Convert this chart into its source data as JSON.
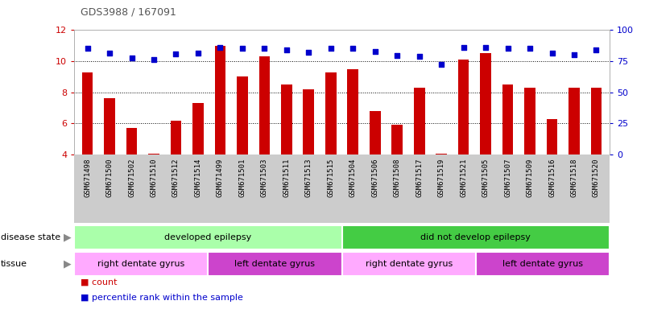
{
  "title": "GDS3988 / 167091",
  "samples": [
    "GSM671498",
    "GSM671500",
    "GSM671502",
    "GSM671510",
    "GSM671512",
    "GSM671514",
    "GSM671499",
    "GSM671501",
    "GSM671503",
    "GSM671511",
    "GSM671513",
    "GSM671515",
    "GSM671504",
    "GSM671506",
    "GSM671508",
    "GSM671517",
    "GSM671519",
    "GSM671521",
    "GSM671505",
    "GSM671507",
    "GSM671509",
    "GSM671516",
    "GSM671518",
    "GSM671520"
  ],
  "count_values": [
    9.3,
    7.6,
    5.7,
    4.05,
    6.2,
    7.3,
    11.0,
    9.0,
    10.3,
    8.5,
    8.2,
    9.3,
    9.5,
    6.8,
    5.9,
    8.3,
    4.05,
    10.1,
    10.5,
    8.5,
    8.3,
    6.3,
    8.3,
    8.3
  ],
  "percentile_values": [
    10.8,
    10.5,
    10.2,
    10.1,
    10.45,
    10.5,
    10.9,
    10.8,
    10.8,
    10.7,
    10.55,
    10.8,
    10.85,
    10.6,
    10.35,
    10.3,
    9.8,
    10.9,
    10.9,
    10.85,
    10.8,
    10.5,
    10.4,
    10.7
  ],
  "ylim_left": [
    4,
    12
  ],
  "ylim_right": [
    0,
    100
  ],
  "yticks_left": [
    4,
    6,
    8,
    10,
    12
  ],
  "yticks_right": [
    0,
    25,
    50,
    75,
    100
  ],
  "bar_color": "#cc0000",
  "dot_color": "#0000cc",
  "disease_state": [
    {
      "label": "developed epilepsy",
      "start": 0,
      "end": 12,
      "color": "#aaffaa"
    },
    {
      "label": "did not develop epilepsy",
      "start": 12,
      "end": 24,
      "color": "#44cc44"
    }
  ],
  "tissue": [
    {
      "label": "right dentate gyrus",
      "start": 0,
      "end": 6,
      "color": "#ffaaff"
    },
    {
      "label": "left dentate gyrus",
      "start": 6,
      "end": 12,
      "color": "#cc44cc"
    },
    {
      "label": "right dentate gyrus",
      "start": 12,
      "end": 18,
      "color": "#ffaaff"
    },
    {
      "label": "left dentate gyrus",
      "start": 18,
      "end": 24,
      "color": "#cc44cc"
    }
  ],
  "annotation_row1_label": "disease state",
  "annotation_row2_label": "tissue",
  "xtick_bg_color": "#cccccc",
  "bg_color": "#ffffff"
}
